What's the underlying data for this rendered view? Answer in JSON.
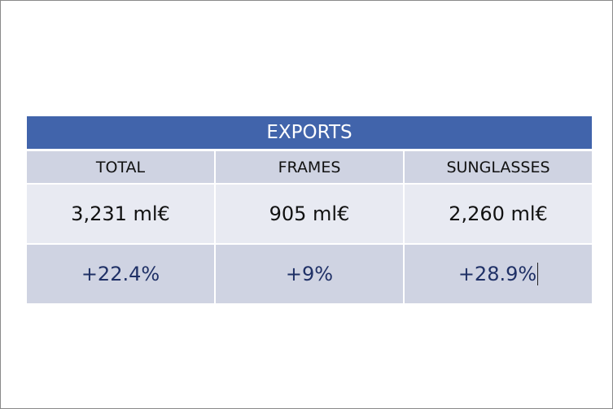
{
  "table": {
    "title": "EXPORTS",
    "columns": [
      {
        "header": "TOTAL",
        "value": "3,231 ml€",
        "change": "+22.4%"
      },
      {
        "header": "FRAMES",
        "value": "905 ml€",
        "change": "+9%"
      },
      {
        "header": "SUNGLASSES",
        "value": "2,260 ml€",
        "change": "+28.9%"
      }
    ]
  },
  "colors": {
    "title_bar": "#4164ab",
    "header_row": "#cfd3e2",
    "value_row": "#e8eaf2",
    "change_row": "#cfd3e2",
    "change_text": "#1f3066"
  }
}
